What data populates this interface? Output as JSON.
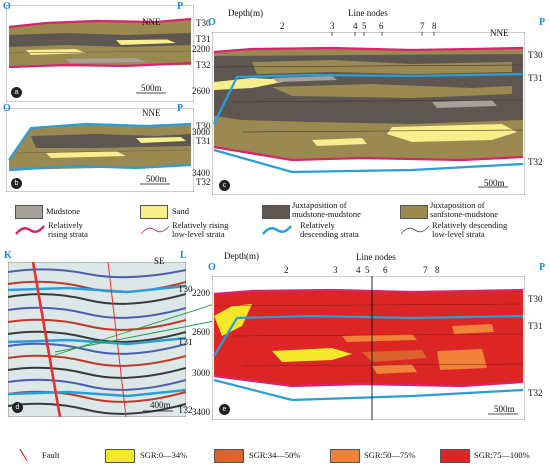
{
  "corners": {
    "left": "O",
    "right": "P",
    "seis_left": "K",
    "seis_right": "L"
  },
  "labels": {
    "nne": "NNE",
    "se": "SE",
    "scale_500": "500m",
    "scale_400": "400m",
    "depth": "Depth(m)",
    "line_nodes": "Line nodes",
    "t30": "T30",
    "t31": "T31",
    "t32": "T32"
  },
  "badges": [
    "a",
    "b",
    "c",
    "d",
    "e"
  ],
  "depth_ticks": [
    "2200",
    "2600",
    "3000",
    "3400"
  ],
  "node_ticks": [
    "2",
    "3",
    "4",
    "5",
    "6",
    "7",
    "8"
  ],
  "legend_top": {
    "mudstone": "Mudstone",
    "sand": "Sand",
    "juxt_mm_1": "Juxtaposition of",
    "juxt_mm_2": "mudstone-mudstone",
    "juxt_sm_1": "Juxtaposition of",
    "juxt_sm_2": "sanfstone-mudstone",
    "rising_1": "Relatively",
    "rising_2": "rising strata",
    "rising_low_1": "Relatively rising",
    "rising_low_2": "low-level strata",
    "desc_1": "Relatively",
    "desc_2": "descending strata",
    "desc_low_1": "Relatively descending",
    "desc_low_2": "low-level strata"
  },
  "legend_bottom": {
    "fault": "Fault",
    "sgr1": "SGR:0—34%",
    "sgr2": "SGR:34—50%",
    "sgr3": "SGR:50—75%",
    "sgr4": "SGR:75—100%"
  },
  "colors": {
    "mudstone": "#a6a29b",
    "sand": "#f7ee8c",
    "mm": "#5e5650",
    "sm": "#9a8a52",
    "rising": "#d9246b",
    "descending": "#2a9ed8",
    "sgr1": "#f3e92a",
    "sgr2": "#d9632a",
    "sgr3": "#f0823a",
    "sgr4": "#dc2626"
  }
}
